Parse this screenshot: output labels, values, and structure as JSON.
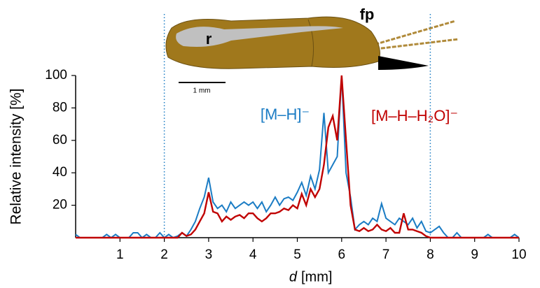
{
  "chart_data": {
    "type": "line",
    "y_label": "Relative intensity [%]",
    "x_label_symbol": "d",
    "x_label_unit": "[mm]",
    "annotations": [
      "r",
      "fp",
      "1 mm"
    ],
    "x": [
      0,
      0.1,
      0.2,
      0.3,
      0.4,
      0.5,
      0.6,
      0.7,
      0.8,
      0.9,
      1,
      1.1,
      1.2,
      1.3,
      1.4,
      1.5,
      1.6,
      1.7,
      1.8,
      1.9,
      2,
      2.1,
      2.2,
      2.3,
      2.4,
      2.5,
      2.6,
      2.7,
      2.8,
      2.9,
      3,
      3.1,
      3.2,
      3.3,
      3.4,
      3.5,
      3.6,
      3.7,
      3.8,
      3.9,
      4,
      4.1,
      4.2,
      4.3,
      4.4,
      4.5,
      4.6,
      4.7,
      4.8,
      4.9,
      5,
      5.1,
      5.2,
      5.3,
      5.4,
      5.5,
      5.6,
      5.7,
      5.8,
      5.9,
      6,
      6.1,
      6.2,
      6.3,
      6.4,
      6.5,
      6.6,
      6.7,
      6.8,
      6.9,
      7,
      7.1,
      7.2,
      7.3,
      7.4,
      7.5,
      7.6,
      7.7,
      7.8,
      7.9,
      8,
      8.1,
      8.2,
      8.3,
      8.4,
      8.5,
      8.6,
      8.7,
      8.8,
      8.9,
      9,
      9.1,
      9.2,
      9.3,
      9.4,
      9.5,
      9.6,
      9.7,
      9.8,
      9.9,
      10
    ],
    "series": [
      {
        "name": "[M–H]⁻",
        "color": "#1b7cc4",
        "values": [
          2,
          0,
          0,
          0,
          0,
          0,
          0,
          2,
          0,
          2,
          0,
          0,
          0,
          3,
          3,
          0,
          2,
          0,
          0,
          3,
          0,
          2,
          0,
          1,
          3,
          1,
          5,
          10,
          18,
          25,
          37,
          22,
          18,
          20,
          16,
          22,
          18,
          20,
          22,
          20,
          22,
          18,
          22,
          16,
          20,
          25,
          20,
          24,
          25,
          23,
          28,
          34,
          26,
          38,
          30,
          42,
          77,
          40,
          45,
          50,
          100,
          40,
          25,
          5,
          8,
          10,
          8,
          12,
          10,
          21,
          12,
          10,
          8,
          12,
          10,
          8,
          12,
          6,
          10,
          4,
          3,
          5,
          7,
          3,
          0,
          0,
          3,
          0,
          0,
          0,
          0,
          0,
          0,
          2,
          0,
          0,
          0,
          0,
          0,
          2,
          0
        ]
      },
      {
        "name": "[M–H–H₂O]⁻",
        "color": "#c00000",
        "values": [
          0,
          0,
          0,
          0,
          0,
          0,
          0,
          0,
          0,
          0,
          0,
          0,
          0,
          0,
          0,
          0,
          0,
          0,
          0,
          0,
          0,
          0,
          0,
          0,
          3,
          1,
          2,
          5,
          10,
          15,
          28,
          16,
          15,
          10,
          13,
          11,
          13,
          14,
          12,
          15,
          15,
          12,
          10,
          12,
          15,
          15,
          16,
          18,
          17,
          20,
          18,
          27,
          20,
          30,
          25,
          30,
          45,
          68,
          75,
          60,
          100,
          60,
          20,
          5,
          4,
          6,
          4,
          5,
          8,
          5,
          4,
          6,
          3,
          3,
          15,
          5,
          5,
          4,
          3,
          1,
          0,
          0,
          0,
          0,
          0,
          0,
          0,
          0,
          0,
          0,
          0,
          0,
          0,
          0,
          0,
          0,
          0,
          0,
          0,
          0,
          0
        ]
      }
    ],
    "xlim": [
      0,
      10
    ],
    "xticks": [
      1,
      2,
      3,
      4,
      5,
      6,
      7,
      8,
      9,
      10
    ],
    "ylim": [
      0,
      100
    ],
    "yticks": [
      20,
      40,
      60,
      80,
      100
    ],
    "vlines": [
      2,
      8
    ]
  }
}
